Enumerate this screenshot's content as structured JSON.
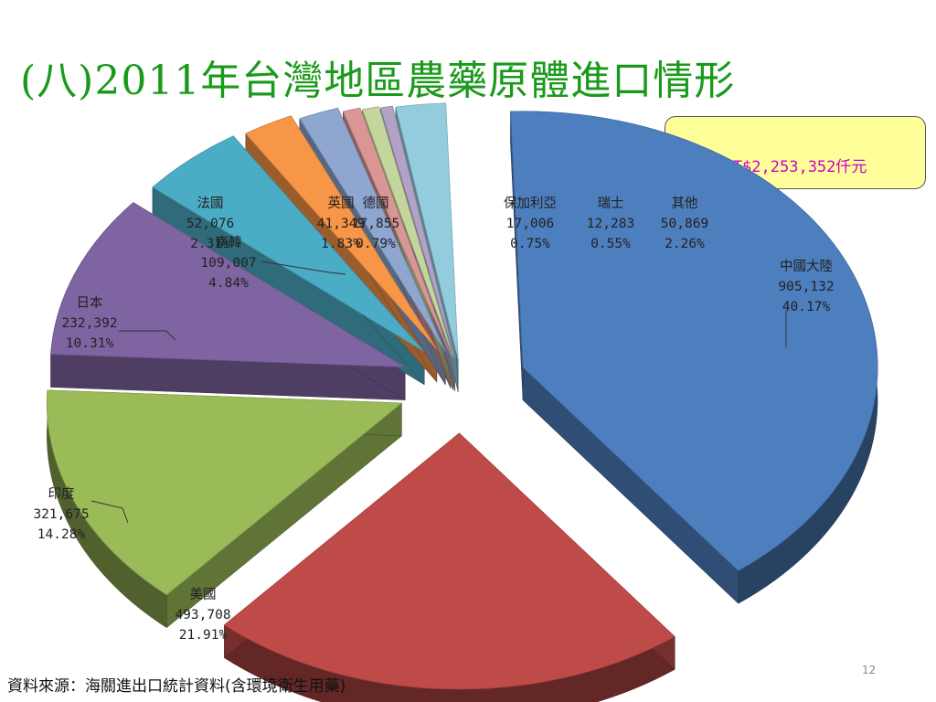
{
  "slide": {
    "title": "(八)2011年台灣地區農藥原體進口情形",
    "callout": "NT$2,253,352仟元",
    "source": "資料來源：海關進出口統計資料(含環境衛生用藥)",
    "page_number": "12"
  },
  "chart_data": {
    "type": "pie",
    "style": "3d-exploded",
    "total": 2253352,
    "total_label": "NT$2,253,352仟元",
    "slices": [
      {
        "name": "中國大陸",
        "value": 905132,
        "value_label": "905,132",
        "percent_label": "40.17%",
        "color": "#4d7ebd"
      },
      {
        "name": "美國",
        "value": 493708,
        "value_label": "493,708",
        "percent_label": "21.91%",
        "color": "#bf4b48"
      },
      {
        "name": "印度",
        "value": 321675,
        "value_label": "321,675",
        "percent_label": "14.28%",
        "color": "#9bbb59"
      },
      {
        "name": "日本",
        "value": 232392,
        "value_label": "232,392",
        "percent_label": "10.31%",
        "color": "#7f64a2"
      },
      {
        "name": "南韓",
        "value": 109007,
        "value_label": "109,007",
        "percent_label": "4.84%",
        "color": "#4bacc6"
      },
      {
        "name": "法國",
        "value": 52076,
        "value_label": "52,076",
        "percent_label": "2.31%",
        "color": "#f79646"
      },
      {
        "name": "英國",
        "value": 41349,
        "value_label": "41,349",
        "percent_label": "1.83%",
        "color": "#8ea6d0"
      },
      {
        "name": "德國",
        "value": 17855,
        "value_label": "17,855",
        "percent_label": "0.79%",
        "color": "#d99694"
      },
      {
        "name": "保加利亞",
        "value": 17006,
        "value_label": "17,006",
        "percent_label": "0.75%",
        "color": "#c3d69b"
      },
      {
        "name": "瑞士",
        "value": 12283,
        "value_label": "12,283",
        "percent_label": "0.55%",
        "color": "#b3a2c7"
      },
      {
        "name": "其他",
        "value": 50869,
        "value_label": "50,869",
        "percent_label": "2.26%",
        "color": "#93cddd"
      }
    ]
  }
}
